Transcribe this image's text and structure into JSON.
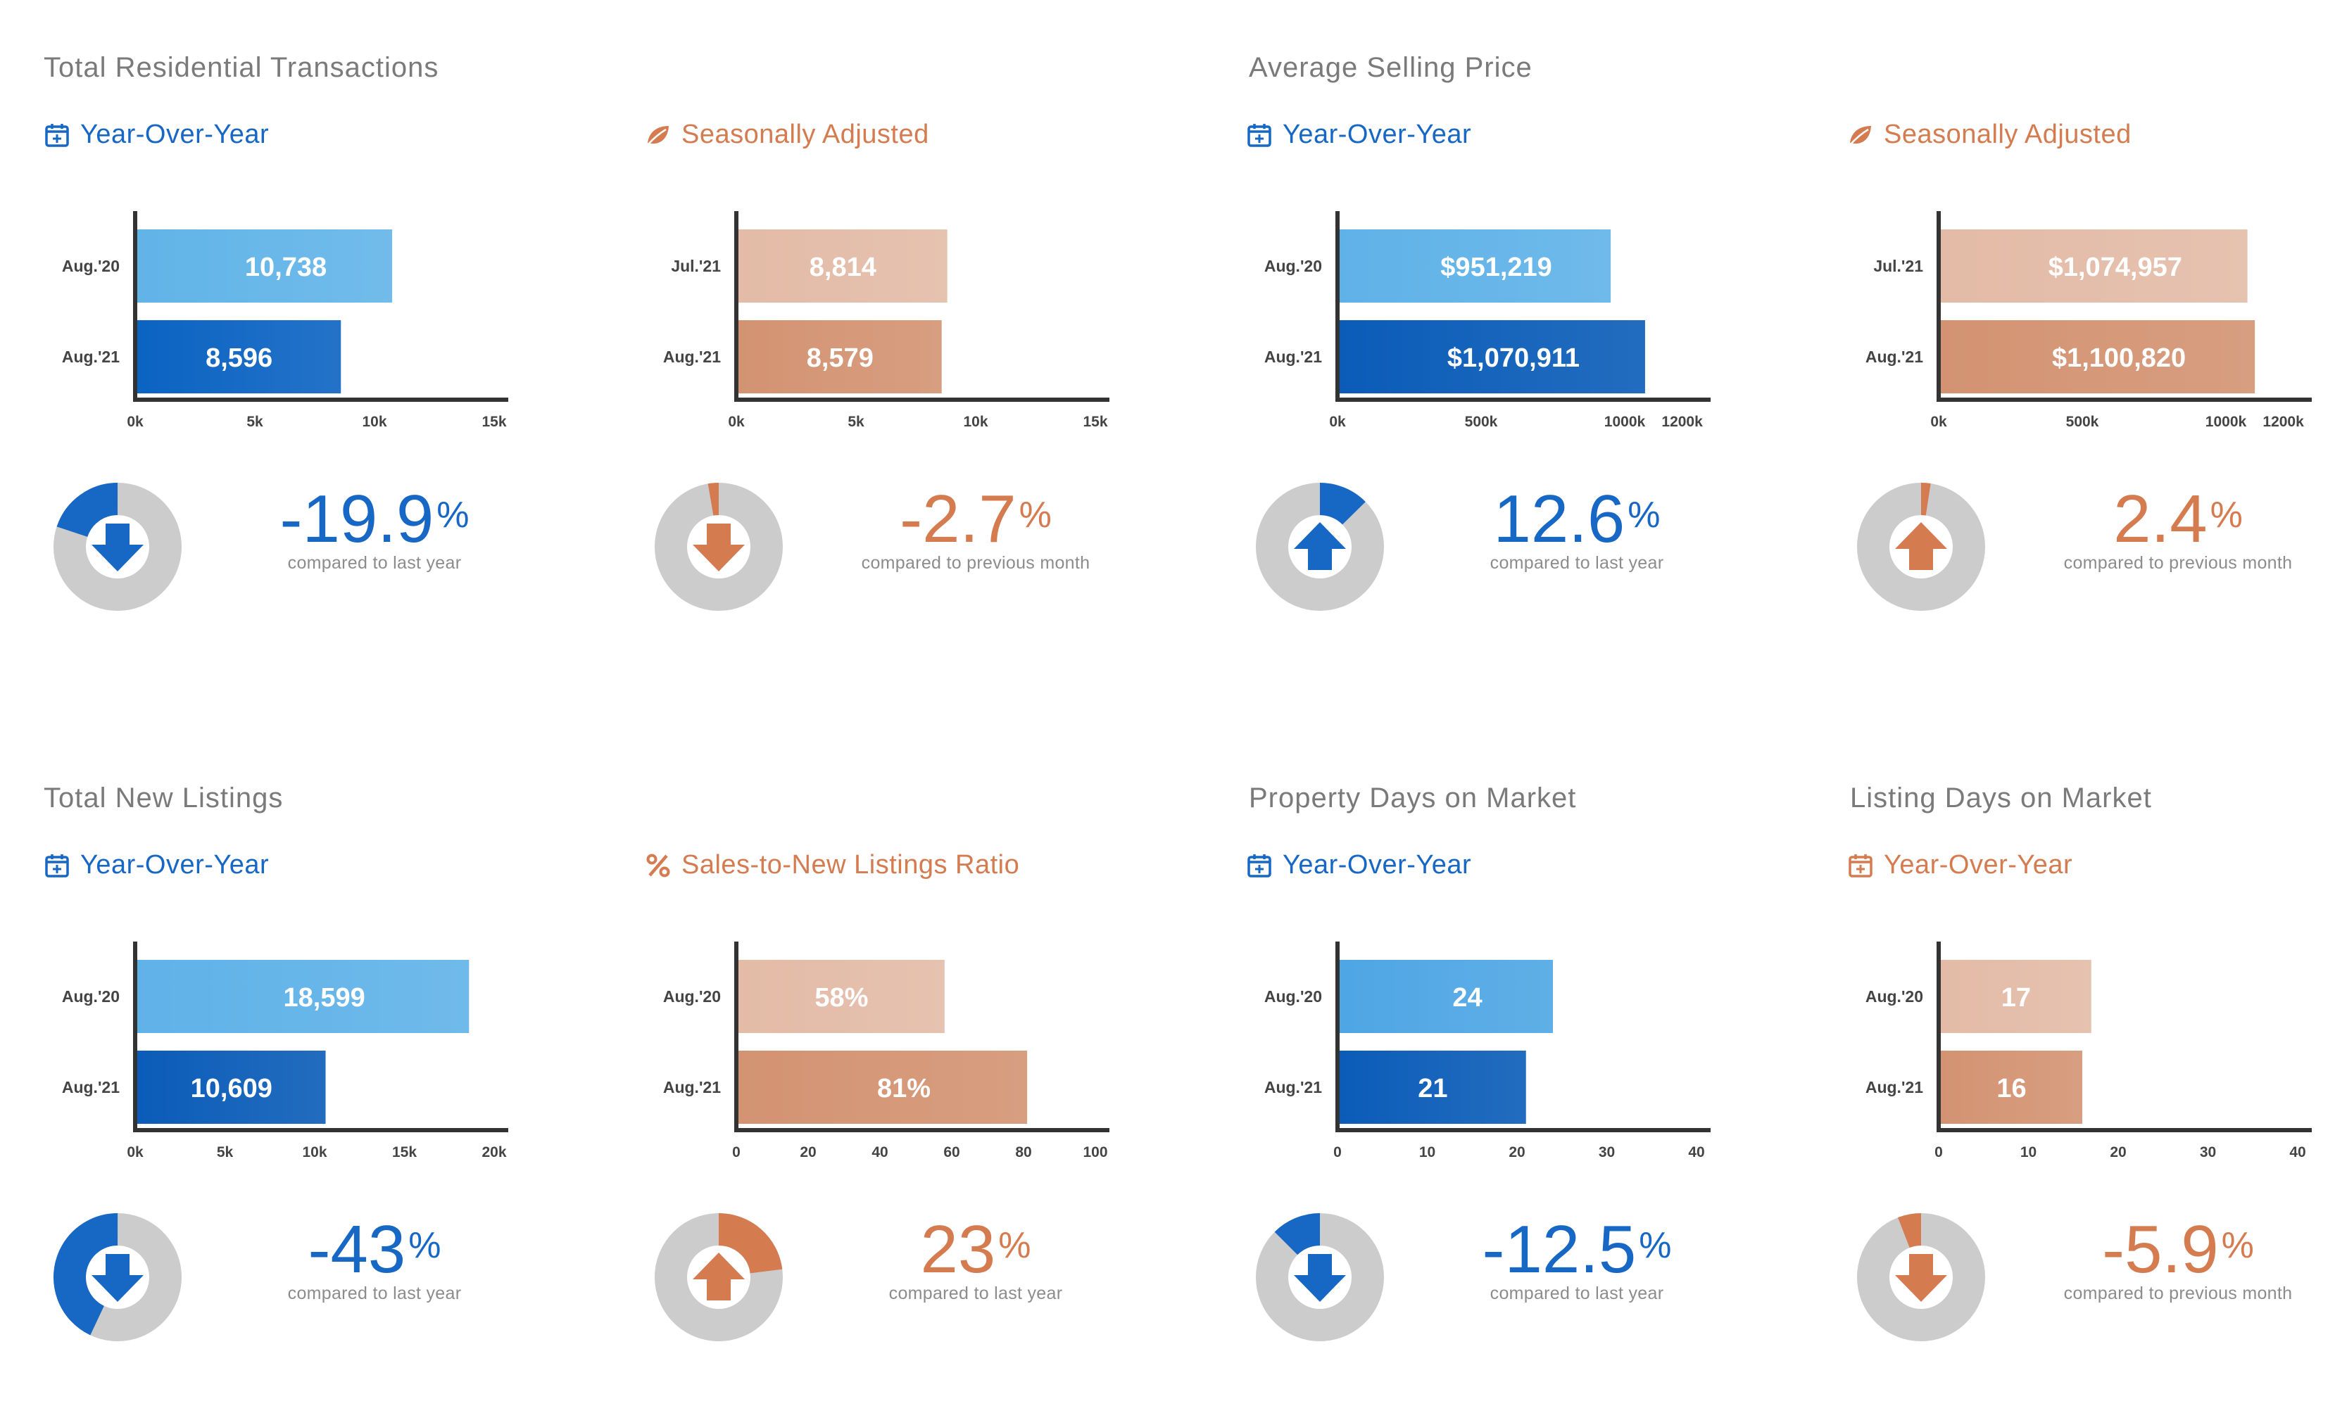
{
  "sections": [
    {
      "title": "Total Residential Transactions"
    },
    {
      "title": "Average Selling Price"
    },
    {
      "title": "Total New Listings"
    },
    {
      "title": "Property Days on Market"
    },
    {
      "title": "Listing Days on Market"
    }
  ],
  "panels": [
    {
      "subtitle": "Year-Over-Year",
      "color": "blue",
      "icon": "calendar-icon",
      "pct": "-19.9",
      "pct_symbol": "%",
      "pct_value": -19.9,
      "compare": "compared to last year",
      "direction": "down"
    },
    {
      "subtitle": "Seasonally Adjusted",
      "color": "orange",
      "icon": "leaf-icon",
      "pct": "-2.7",
      "pct_symbol": "%",
      "pct_value": -2.7,
      "compare": "compared to previous month",
      "direction": "down"
    },
    {
      "subtitle": "Year-Over-Year",
      "color": "blue",
      "icon": "calendar-icon",
      "pct": "12.6",
      "pct_symbol": "%",
      "pct_value": 12.6,
      "compare": "compared to last year",
      "direction": "up"
    },
    {
      "subtitle": "Seasonally Adjusted",
      "color": "orange",
      "icon": "leaf-icon",
      "pct": "2.4",
      "pct_symbol": "%",
      "pct_value": 2.4,
      "compare": "compared to previous month",
      "direction": "up"
    },
    {
      "subtitle": "Year-Over-Year",
      "color": "blue",
      "icon": "calendar-icon",
      "pct": "-43",
      "pct_symbol": "%",
      "pct_value": -43,
      "compare": "compared to last year",
      "direction": "down"
    },
    {
      "subtitle": "Sales-to-New Listings Ratio",
      "color": "orange",
      "icon": "percent-icon",
      "pct": "23",
      "pct_symbol": "%",
      "pct_value": 23,
      "compare": "compared to last year",
      "direction": "up"
    },
    {
      "subtitle": "Year-Over-Year",
      "color": "blue",
      "icon": "calendar-icon",
      "pct": "-12.5",
      "pct_symbol": "%",
      "pct_value": -12.5,
      "compare": "compared to last year",
      "direction": "down"
    },
    {
      "subtitle": "Year-Over-Year",
      "color": "orange",
      "icon": "calendar-icon",
      "pct": "-5.9",
      "pct_symbol": "%",
      "pct_value": -5.9,
      "compare": "compared to previous month",
      "direction": "down"
    }
  ],
  "chart_data": [
    {
      "type": "bar",
      "categories": [
        "Aug.'20",
        "Aug.'21"
      ],
      "values": [
        10738,
        8596
      ],
      "labels": [
        "10,738",
        "8,596"
      ],
      "xlim": [
        0,
        15000
      ],
      "ticks": [
        0,
        5000,
        10000,
        15000
      ],
      "tick_labels": [
        "0k",
        "5k",
        "10k",
        "15k"
      ],
      "colors": [
        "#61b4e8",
        "#0b63c2"
      ]
    },
    {
      "type": "bar",
      "categories": [
        "Jul.'21",
        "Aug.'21"
      ],
      "values": [
        8814,
        8579
      ],
      "labels": [
        "8,814",
        "8,579"
      ],
      "xlim": [
        0,
        15000
      ],
      "ticks": [
        0,
        5000,
        10000,
        15000
      ],
      "tick_labels": [
        "0k",
        "5k",
        "10k",
        "15k"
      ],
      "colors": [
        "#e3bba7",
        "#d39372"
      ]
    },
    {
      "type": "bar",
      "categories": [
        "Aug.'20",
        "Aug.'21"
      ],
      "values": [
        951219,
        1070911
      ],
      "labels": [
        "$951,219",
        "$1,070,911"
      ],
      "xlim": [
        0,
        1250000
      ],
      "ticks": [
        0,
        500000,
        1000000,
        1200000
      ],
      "tick_labels": [
        "0k",
        "500k",
        "1000k",
        "1200k"
      ],
      "colors": [
        "#5fb2e8",
        "#0a5cb8"
      ]
    },
    {
      "type": "bar",
      "categories": [
        "Jul.'21",
        "Aug.'21"
      ],
      "values": [
        1074957,
        1100820
      ],
      "labels": [
        "$1,074,957",
        "$1,100,820"
      ],
      "xlim": [
        0,
        1250000
      ],
      "ticks": [
        0,
        500000,
        1000000,
        1200000
      ],
      "tick_labels": [
        "0k",
        "500k",
        "1000k",
        "1200k"
      ],
      "colors": [
        "#e3bba7",
        "#d39372"
      ]
    },
    {
      "type": "bar",
      "categories": [
        "Aug.'20",
        "Aug.'21"
      ],
      "values": [
        18599,
        10609
      ],
      "labels": [
        "18,599",
        "10,609"
      ],
      "xlim": [
        0,
        20000
      ],
      "ticks": [
        0,
        5000,
        10000,
        15000,
        20000
      ],
      "tick_labels": [
        "0k",
        "5k",
        "10k",
        "15k",
        "20k"
      ],
      "colors": [
        "#5fb2e8",
        "#0a5cb8"
      ]
    },
    {
      "type": "bar",
      "categories": [
        "Aug.'20",
        "Aug.'21"
      ],
      "values": [
        58,
        81
      ],
      "labels": [
        "58%",
        "81%"
      ],
      "xlim": [
        0,
        100
      ],
      "ticks": [
        0,
        20,
        40,
        60,
        80,
        100
      ],
      "tick_labels": [
        "0",
        "20",
        "40",
        "60",
        "80",
        "100"
      ],
      "colors": [
        "#e3bba7",
        "#d39372"
      ]
    },
    {
      "type": "bar",
      "categories": [
        "Aug.'20",
        "Aug.'21"
      ],
      "values": [
        24,
        21
      ],
      "labels": [
        "24",
        "21"
      ],
      "xlim": [
        0,
        40
      ],
      "ticks": [
        0,
        10,
        20,
        30,
        40
      ],
      "tick_labels": [
        "0",
        "10",
        "20",
        "30",
        "40"
      ],
      "colors": [
        "#4ea6e4",
        "#0a5cb8"
      ]
    },
    {
      "type": "bar",
      "categories": [
        "Aug.'20",
        "Aug.'21"
      ],
      "values": [
        17,
        16
      ],
      "labels": [
        "17",
        "16"
      ],
      "xlim": [
        0,
        40
      ],
      "ticks": [
        0,
        10,
        20,
        30,
        40
      ],
      "tick_labels": [
        "0",
        "10",
        "20",
        "30",
        "40"
      ],
      "colors": [
        "#e3bba7",
        "#d39372"
      ]
    }
  ],
  "colors": {
    "blue": "#1767c4",
    "orange": "#d57b50",
    "donut_bg": "#cccccc",
    "axis": "#333333",
    "tick_text": "#444444"
  }
}
